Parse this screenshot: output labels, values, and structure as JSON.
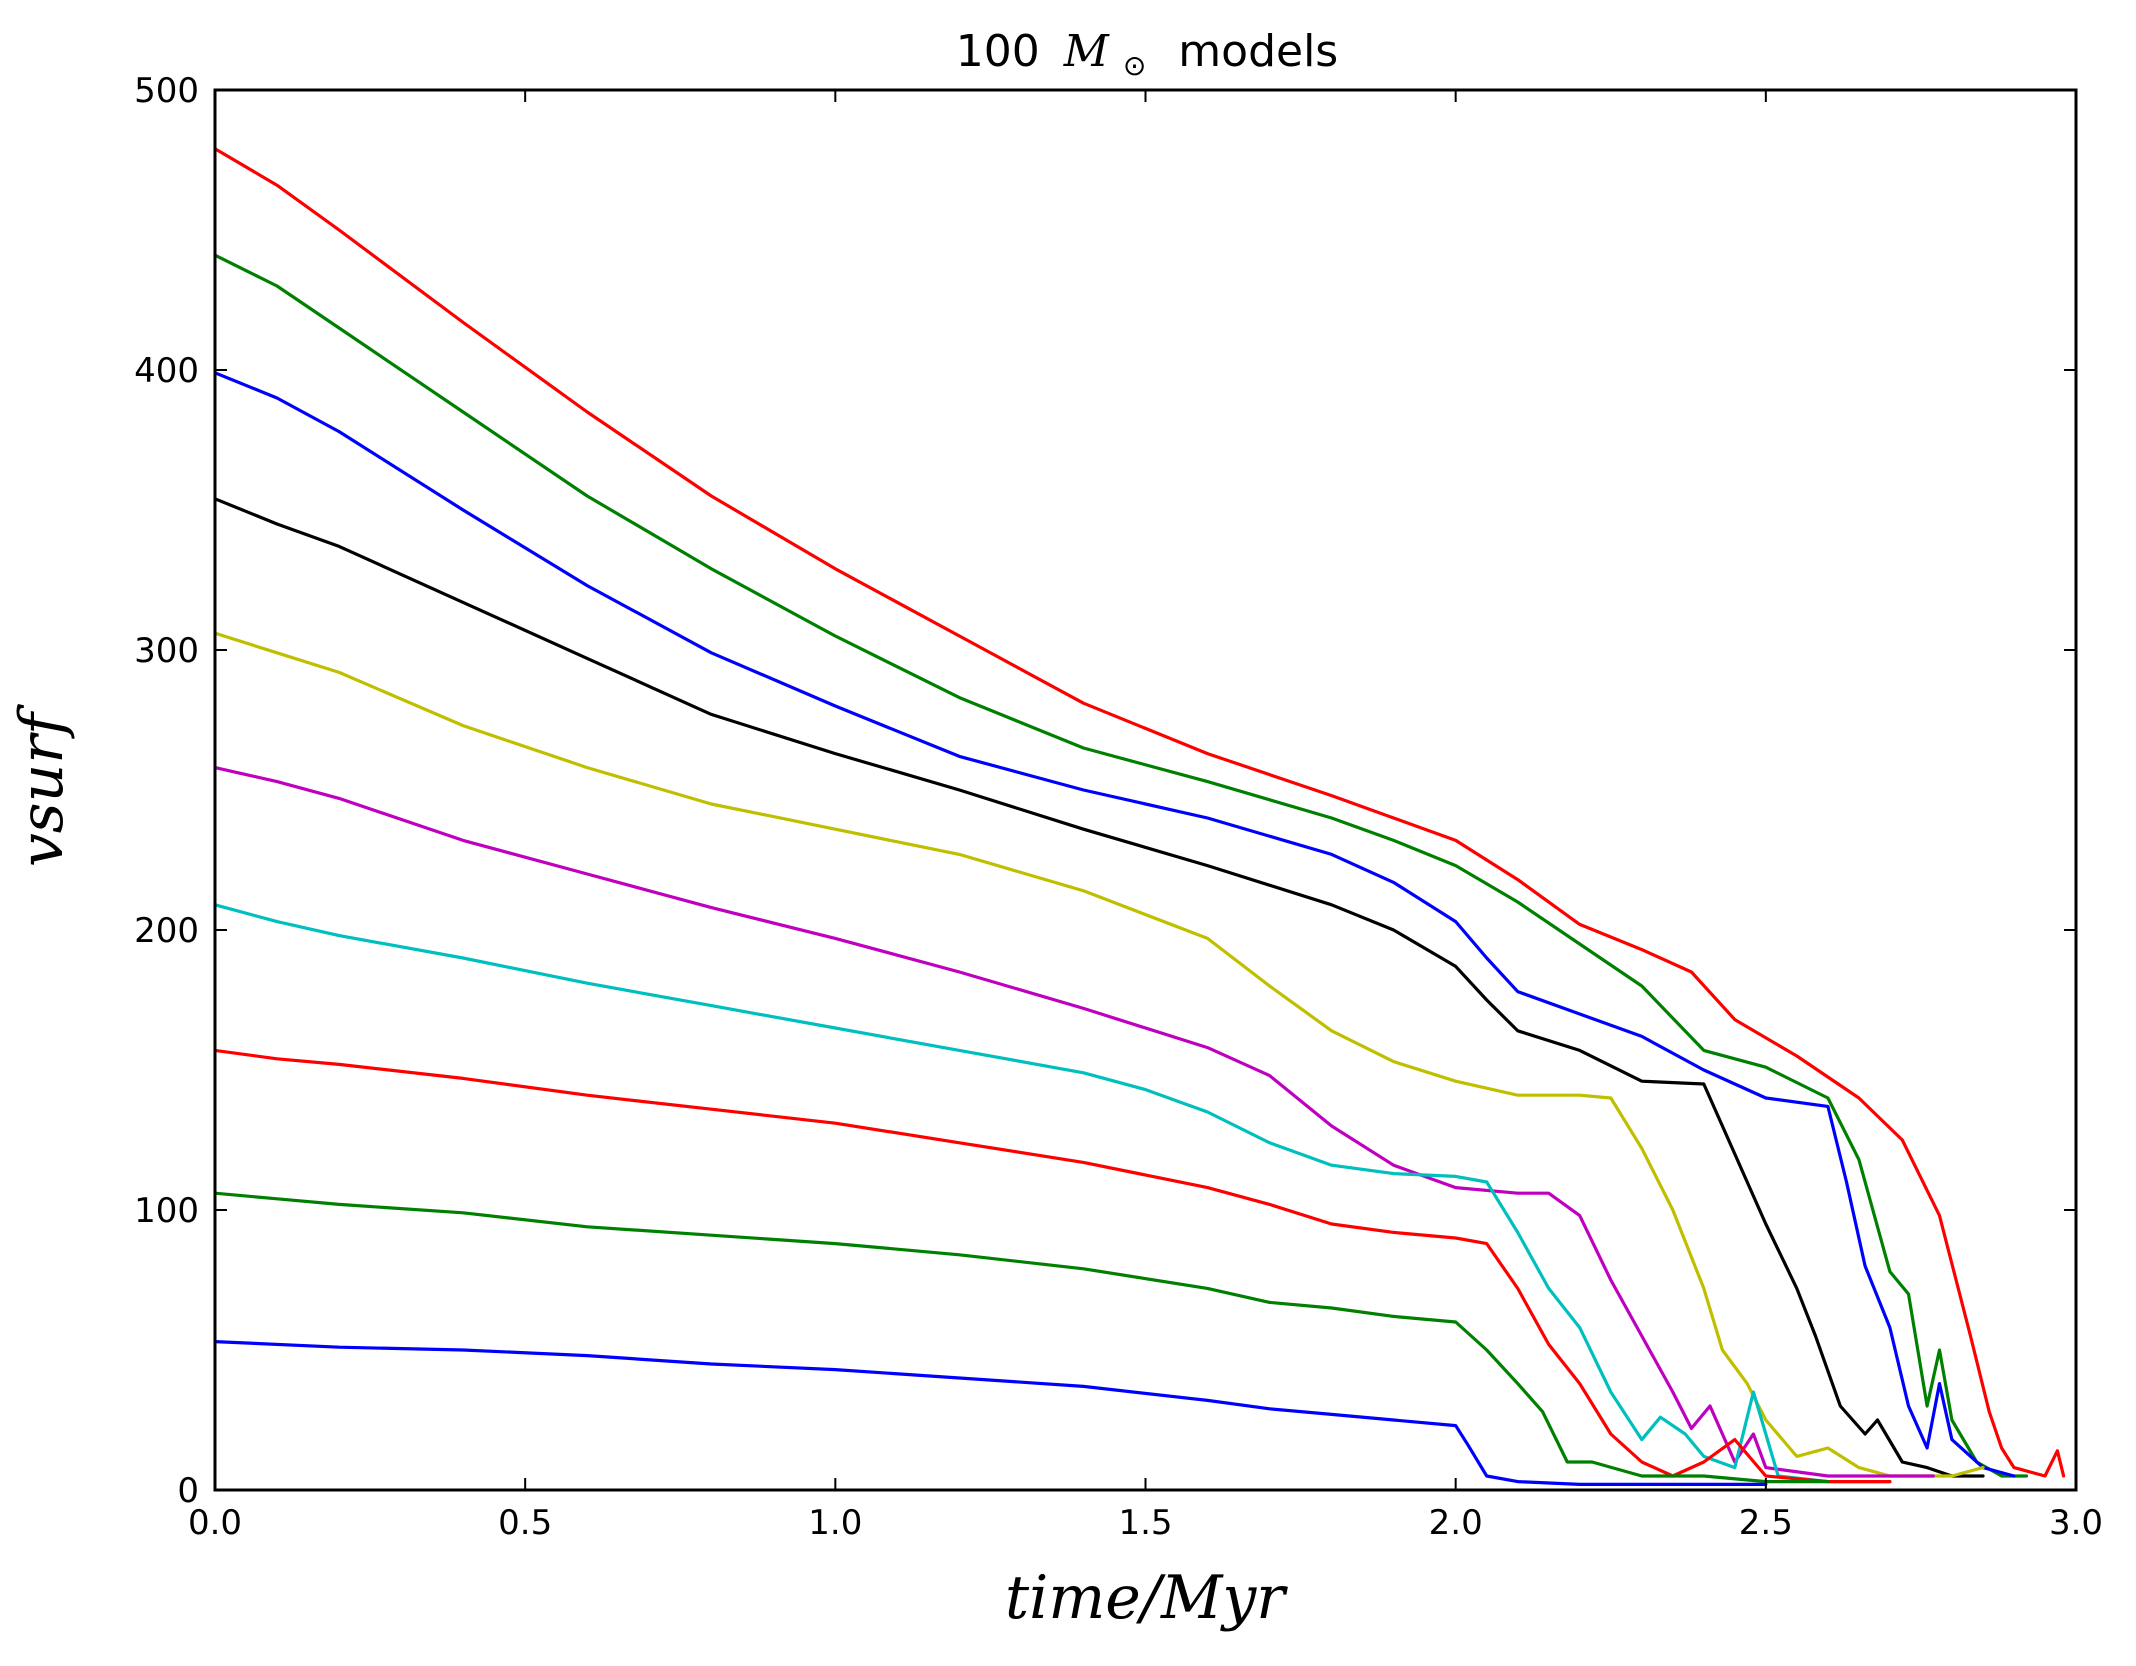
{
  "chart_data": {
    "type": "line",
    "title": "100 M⊙ models",
    "title_prefix": "100",
    "title_symbol": "M",
    "title_subscript": "⊙",
    "title_suffix": "models",
    "xlabel": "time/Myr",
    "ylabel": "vsurf",
    "xlim": [
      0,
      3.0
    ],
    "ylim": [
      0,
      500
    ],
    "xticks": [
      "0.0",
      "0.5",
      "1.0",
      "1.5",
      "2.0",
      "2.5",
      "3.0"
    ],
    "yticks": [
      "0",
      "100",
      "200",
      "300",
      "400",
      "500"
    ],
    "grid": false,
    "legend": "none",
    "series": [
      {
        "color": "#ff0000",
        "points": [
          [
            0,
            479
          ],
          [
            0.1,
            466
          ],
          [
            0.2,
            450
          ],
          [
            0.4,
            417
          ],
          [
            0.6,
            385
          ],
          [
            0.8,
            355
          ],
          [
            1.0,
            329
          ],
          [
            1.2,
            305
          ],
          [
            1.4,
            281
          ],
          [
            1.6,
            263
          ],
          [
            1.8,
            248
          ],
          [
            1.9,
            240
          ],
          [
            2.0,
            232
          ],
          [
            2.1,
            218
          ],
          [
            2.2,
            202
          ],
          [
            2.3,
            193
          ],
          [
            2.38,
            185
          ],
          [
            2.45,
            168
          ],
          [
            2.55,
            155
          ],
          [
            2.65,
            140
          ],
          [
            2.72,
            125
          ],
          [
            2.78,
            98
          ],
          [
            2.83,
            55
          ],
          [
            2.86,
            28
          ],
          [
            2.88,
            15
          ],
          [
            2.9,
            8
          ],
          [
            2.95,
            5
          ],
          [
            2.97,
            14
          ],
          [
            2.98,
            5
          ]
        ]
      },
      {
        "color": "#008000",
        "points": [
          [
            0,
            441
          ],
          [
            0.1,
            430
          ],
          [
            0.2,
            415
          ],
          [
            0.4,
            385
          ],
          [
            0.6,
            355
          ],
          [
            0.8,
            329
          ],
          [
            1.0,
            305
          ],
          [
            1.2,
            283
          ],
          [
            1.4,
            265
          ],
          [
            1.6,
            253
          ],
          [
            1.8,
            240
          ],
          [
            1.9,
            232
          ],
          [
            2.0,
            223
          ],
          [
            2.1,
            210
          ],
          [
            2.2,
            195
          ],
          [
            2.3,
            180
          ],
          [
            2.4,
            157
          ],
          [
            2.5,
            151
          ],
          [
            2.6,
            140
          ],
          [
            2.65,
            118
          ],
          [
            2.7,
            78
          ],
          [
            2.73,
            70
          ],
          [
            2.76,
            30
          ],
          [
            2.78,
            50
          ],
          [
            2.8,
            25
          ],
          [
            2.84,
            10
          ],
          [
            2.88,
            5
          ],
          [
            2.92,
            5
          ]
        ]
      },
      {
        "color": "#0000ff",
        "points": [
          [
            0,
            399
          ],
          [
            0.1,
            390
          ],
          [
            0.2,
            378
          ],
          [
            0.4,
            350
          ],
          [
            0.6,
            323
          ],
          [
            0.8,
            299
          ],
          [
            1.0,
            280
          ],
          [
            1.2,
            262
          ],
          [
            1.4,
            250
          ],
          [
            1.6,
            240
          ],
          [
            1.8,
            227
          ],
          [
            1.9,
            217
          ],
          [
            2.0,
            203
          ],
          [
            2.05,
            190
          ],
          [
            2.1,
            178
          ],
          [
            2.2,
            170
          ],
          [
            2.3,
            162
          ],
          [
            2.4,
            150
          ],
          [
            2.5,
            140
          ],
          [
            2.6,
            137
          ],
          [
            2.63,
            110
          ],
          [
            2.66,
            80
          ],
          [
            2.7,
            58
          ],
          [
            2.73,
            30
          ],
          [
            2.76,
            15
          ],
          [
            2.78,
            38
          ],
          [
            2.8,
            18
          ],
          [
            2.85,
            8
          ],
          [
            2.9,
            5
          ]
        ]
      },
      {
        "color": "#000000",
        "points": [
          [
            0,
            354
          ],
          [
            0.1,
            345
          ],
          [
            0.2,
            337
          ],
          [
            0.4,
            317
          ],
          [
            0.6,
            297
          ],
          [
            0.8,
            277
          ],
          [
            1.0,
            263
          ],
          [
            1.2,
            250
          ],
          [
            1.4,
            236
          ],
          [
            1.6,
            223
          ],
          [
            1.8,
            209
          ],
          [
            1.9,
            200
          ],
          [
            2.0,
            187
          ],
          [
            2.05,
            175
          ],
          [
            2.1,
            164
          ],
          [
            2.2,
            157
          ],
          [
            2.3,
            146
          ],
          [
            2.4,
            145
          ],
          [
            2.45,
            120
          ],
          [
            2.5,
            95
          ],
          [
            2.55,
            72
          ],
          [
            2.58,
            55
          ],
          [
            2.62,
            30
          ],
          [
            2.66,
            20
          ],
          [
            2.68,
            25
          ],
          [
            2.72,
            10
          ],
          [
            2.76,
            8
          ],
          [
            2.8,
            5
          ],
          [
            2.85,
            5
          ]
        ]
      },
      {
        "color": "#bfbf00",
        "points": [
          [
            0,
            306
          ],
          [
            0.1,
            299
          ],
          [
            0.2,
            292
          ],
          [
            0.4,
            273
          ],
          [
            0.6,
            258
          ],
          [
            0.8,
            245
          ],
          [
            1.0,
            236
          ],
          [
            1.2,
            227
          ],
          [
            1.4,
            214
          ],
          [
            1.6,
            197
          ],
          [
            1.7,
            180
          ],
          [
            1.8,
            164
          ],
          [
            1.9,
            153
          ],
          [
            2.0,
            146
          ],
          [
            2.1,
            141
          ],
          [
            2.2,
            141
          ],
          [
            2.25,
            140
          ],
          [
            2.3,
            122
          ],
          [
            2.35,
            100
          ],
          [
            2.4,
            72
          ],
          [
            2.43,
            50
          ],
          [
            2.47,
            38
          ],
          [
            2.5,
            25
          ],
          [
            2.55,
            12
          ],
          [
            2.6,
            15
          ],
          [
            2.65,
            8
          ],
          [
            2.7,
            5
          ],
          [
            2.8,
            5
          ],
          [
            2.85,
            8
          ]
        ]
      },
      {
        "color": "#bf00bf",
        "points": [
          [
            0,
            258
          ],
          [
            0.1,
            253
          ],
          [
            0.2,
            247
          ],
          [
            0.4,
            232
          ],
          [
            0.6,
            220
          ],
          [
            0.8,
            208
          ],
          [
            1.0,
            197
          ],
          [
            1.2,
            185
          ],
          [
            1.4,
            172
          ],
          [
            1.6,
            158
          ],
          [
            1.7,
            148
          ],
          [
            1.8,
            130
          ],
          [
            1.9,
            116
          ],
          [
            2.0,
            108
          ],
          [
            2.1,
            106
          ],
          [
            2.15,
            106
          ],
          [
            2.2,
            98
          ],
          [
            2.25,
            75
          ],
          [
            2.3,
            55
          ],
          [
            2.35,
            35
          ],
          [
            2.38,
            22
          ],
          [
            2.41,
            30
          ],
          [
            2.45,
            10
          ],
          [
            2.48,
            20
          ],
          [
            2.5,
            8
          ],
          [
            2.6,
            5
          ],
          [
            2.7,
            5
          ],
          [
            2.77,
            5
          ]
        ]
      },
      {
        "color": "#00bfbf",
        "points": [
          [
            0,
            209
          ],
          [
            0.1,
            203
          ],
          [
            0.2,
            198
          ],
          [
            0.4,
            190
          ],
          [
            0.6,
            181
          ],
          [
            0.8,
            173
          ],
          [
            1.0,
            165
          ],
          [
            1.2,
            157
          ],
          [
            1.4,
            149
          ],
          [
            1.5,
            143
          ],
          [
            1.6,
            135
          ],
          [
            1.7,
            124
          ],
          [
            1.8,
            116
          ],
          [
            1.9,
            113
          ],
          [
            2.0,
            112
          ],
          [
            2.05,
            110
          ],
          [
            2.1,
            92
          ],
          [
            2.15,
            72
          ],
          [
            2.2,
            58
          ],
          [
            2.25,
            35
          ],
          [
            2.3,
            18
          ],
          [
            2.33,
            26
          ],
          [
            2.37,
            20
          ],
          [
            2.4,
            12
          ],
          [
            2.45,
            8
          ],
          [
            2.48,
            35
          ],
          [
            2.52,
            5
          ],
          [
            2.6,
            3
          ],
          [
            2.7,
            3
          ]
        ]
      },
      {
        "color": "#ff0000",
        "points": [
          [
            0,
            157
          ],
          [
            0.1,
            154
          ],
          [
            0.2,
            152
          ],
          [
            0.4,
            147
          ],
          [
            0.6,
            141
          ],
          [
            0.8,
            136
          ],
          [
            1.0,
            131
          ],
          [
            1.2,
            124
          ],
          [
            1.4,
            117
          ],
          [
            1.6,
            108
          ],
          [
            1.7,
            102
          ],
          [
            1.8,
            95
          ],
          [
            1.9,
            92
          ],
          [
            2.0,
            90
          ],
          [
            2.05,
            88
          ],
          [
            2.1,
            72
          ],
          [
            2.15,
            52
          ],
          [
            2.2,
            38
          ],
          [
            2.25,
            20
          ],
          [
            2.3,
            10
          ],
          [
            2.35,
            5
          ],
          [
            2.4,
            10
          ],
          [
            2.45,
            18
          ],
          [
            2.5,
            5
          ],
          [
            2.6,
            3
          ],
          [
            2.7,
            3
          ]
        ]
      },
      {
        "color": "#008000",
        "points": [
          [
            0,
            106
          ],
          [
            0.1,
            104
          ],
          [
            0.2,
            102
          ],
          [
            0.4,
            99
          ],
          [
            0.6,
            94
          ],
          [
            0.8,
            91
          ],
          [
            1.0,
            88
          ],
          [
            1.2,
            84
          ],
          [
            1.4,
            79
          ],
          [
            1.6,
            72
          ],
          [
            1.7,
            67
          ],
          [
            1.8,
            65
          ],
          [
            1.9,
            62
          ],
          [
            2.0,
            60
          ],
          [
            2.05,
            50
          ],
          [
            2.1,
            38
          ],
          [
            2.14,
            28
          ],
          [
            2.18,
            10
          ],
          [
            2.22,
            10
          ],
          [
            2.3,
            5
          ],
          [
            2.4,
            5
          ],
          [
            2.5,
            3
          ],
          [
            2.6,
            3
          ]
        ]
      },
      {
        "color": "#0000ff",
        "points": [
          [
            0,
            53
          ],
          [
            0.2,
            51
          ],
          [
            0.4,
            50
          ],
          [
            0.6,
            48
          ],
          [
            0.8,
            45
          ],
          [
            1.0,
            43
          ],
          [
            1.2,
            40
          ],
          [
            1.4,
            37
          ],
          [
            1.6,
            32
          ],
          [
            1.7,
            29
          ],
          [
            1.8,
            27
          ],
          [
            1.9,
            25
          ],
          [
            2.0,
            23
          ],
          [
            2.02,
            16
          ],
          [
            2.05,
            5
          ],
          [
            2.1,
            3
          ],
          [
            2.2,
            2
          ],
          [
            2.4,
            2
          ],
          [
            2.5,
            2
          ]
        ]
      }
    ]
  }
}
